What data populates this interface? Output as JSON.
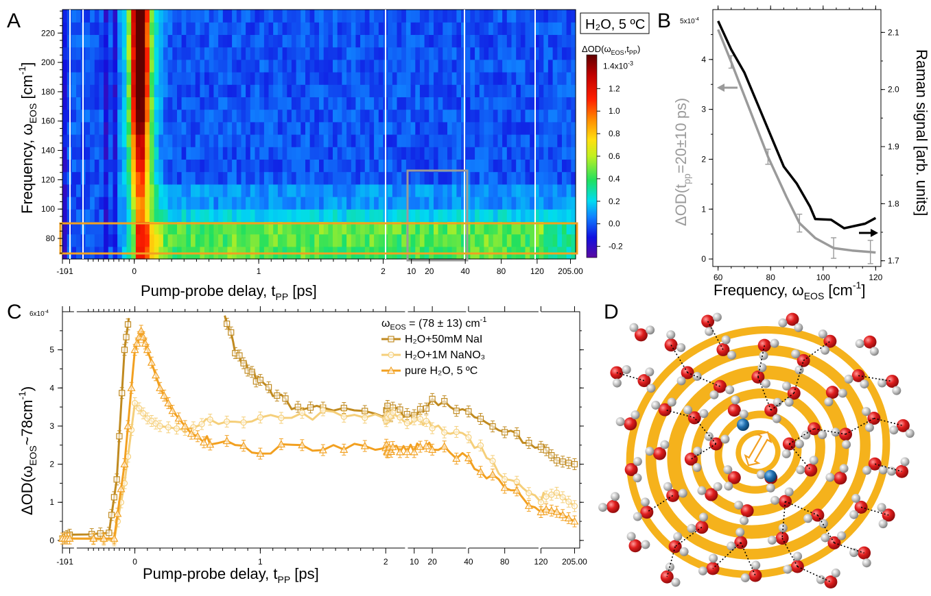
{
  "panels": {
    "a": {
      "letter": "A",
      "inset_label": "H₂O, 5 ºC",
      "xlabel": "Pump-probe delay, t",
      "xlabel_sub": "PP",
      "xlabel_tail": " [ps]",
      "ylabel": "Frequency, ω",
      "ylabel_sub": "EOS",
      "ylabel_tail": " [cm",
      "ylabel_sup": "-1",
      "ylabel_end": "]",
      "colorbar_label": "ΔOD(ω",
      "colorbar_label_sub": "EOS",
      "colorbar_label_mid": ",t",
      "colorbar_label_sub2": "PP",
      "colorbar_label_end": ")"
    },
    "b": {
      "letter": "B"
    },
    "c": {
      "letter": "C"
    },
    "d": {
      "letter": "D"
    }
  },
  "chart_data": [
    {
      "id": "A",
      "type": "heatmap",
      "title": "",
      "xlabel": "Pump-probe delay, tPP [ps]",
      "ylabel": "Frequency, ωEOS [cm-1]",
      "x_tick_labels": [
        "-10",
        "-1",
        "0",
        "1",
        "2",
        "10",
        "20",
        "40",
        "80",
        "120",
        "205.00"
      ],
      "y_ticks": [
        80,
        100,
        120,
        140,
        160,
        180,
        200,
        220
      ],
      "ylim": [
        66,
        236
      ],
      "colorbar": {
        "label": "ΔOD(ωEOS,tPP)",
        "ticks": [
          -0.2,
          0.0,
          0.2,
          0.4,
          0.6,
          0.8,
          1.0,
          1.2
        ],
        "top_label": "1.4x10-3",
        "range": [
          -0.3,
          1.5
        ]
      },
      "features": {
        "time_zero_peak_max": 1.45,
        "low_frequency_band": [
          68,
          88
        ],
        "low_frequency_band_level": 0.45,
        "background_level": -0.02
      }
    },
    {
      "id": "B",
      "type": "line",
      "xlabel": "Frequency, ωEOS [cm-1]",
      "ylabel_left": "ΔOD(tpp=20±10 ps)",
      "ylabel_right": "Raman signal [arb. units]",
      "x_ticks": [
        60,
        80,
        100,
        120
      ],
      "y_left_ticks": [
        0,
        1,
        2,
        3,
        4
      ],
      "y_left_top_label": "5x10-4",
      "y_right_ticks": [
        1.7,
        1.8,
        1.9,
        2.0,
        2.1
      ],
      "xlim": [
        58,
        122
      ],
      "ylim_left": [
        -0.15,
        5.0
      ],
      "ylim_right": [
        1.69,
        2.14
      ],
      "series": [
        {
          "name": "ΔOD",
          "color": "#9a9a9a",
          "axis": "left",
          "x": [
            60,
            65,
            72,
            79,
            86,
            91,
            97,
            104,
            111,
            118,
            120
          ],
          "y": [
            4.6,
            3.95,
            3.0,
            2.05,
            1.25,
            0.72,
            0.42,
            0.22,
            0.17,
            0.14,
            0.13
          ]
        },
        {
          "name": "Raman",
          "color": "#000000",
          "axis": "right",
          "x": [
            60,
            65,
            70,
            75,
            80,
            85,
            90,
            95,
            97,
            103,
            108,
            113,
            116,
            120
          ],
          "y": [
            2.12,
            2.07,
            2.03,
            1.975,
            1.92,
            1.865,
            1.835,
            1.795,
            1.773,
            1.772,
            1.757,
            1.762,
            1.765,
            1.775
          ]
        }
      ]
    },
    {
      "id": "C",
      "type": "line",
      "xlabel": "Pump-probe delay, tPP [ps]",
      "ylabel": "ΔOD(ωEOS~78cm-1)",
      "x_tick_labels": [
        "-10",
        "-1",
        "0",
        "1",
        "2",
        "10",
        "20",
        "40",
        "80",
        "120",
        "205.00"
      ],
      "y_ticks": [
        0,
        1,
        2,
        3,
        4,
        5
      ],
      "y_top_label": "6x10-4",
      "ylim": [
        -0.2,
        6.0
      ],
      "legend_title": "ωEOS = (78 ± 13) cm-1",
      "series": [
        {
          "name": "H₂O+50mM NaI",
          "color": "#c08a20",
          "marker": "square",
          "tpp": [
            -10,
            -1,
            -0.5,
            -0.35,
            -0.2,
            -0.1,
            0.7,
            0.8,
            0.9,
            1.0,
            1.2,
            1.5,
            2.0,
            2.5,
            4,
            10,
            20,
            40,
            80,
            120,
            160,
            205
          ],
          "y": [
            0.05,
            0.15,
            0.2,
            1.6,
            5.0,
            6.0,
            6.0,
            5.0,
            4.5,
            4.2,
            3.6,
            3.4,
            3.3,
            3.4,
            3.4,
            3.3,
            3.6,
            3.4,
            2.8,
            2.5,
            2.1,
            2.0
          ]
        },
        {
          "name": "H₂O+1M NaNO₃",
          "color": "#f5cf7a",
          "marker": "circle",
          "tpp": [
            -10,
            -1,
            -0.4,
            -0.2,
            0.0,
            0.1,
            0.2,
            0.4,
            0.6,
            1.0,
            1.5,
            2.0,
            2.5,
            4,
            10,
            20,
            40,
            80,
            120,
            160,
            205
          ],
          "y": [
            0.05,
            0.05,
            0.0,
            1.5,
            3.6,
            3.2,
            3.0,
            2.9,
            3.1,
            3.2,
            3.3,
            3.2,
            3.3,
            3.3,
            3.1,
            3.0,
            2.7,
            1.7,
            1.1,
            1.25,
            0.9
          ]
        },
        {
          "name": "pure H₂O, 5 ºC",
          "color": "#f2a020",
          "marker": "triangle",
          "tpp": [
            -10,
            -1,
            -0.4,
            -0.2,
            0.0,
            0.05,
            0.1,
            0.2,
            0.3,
            0.45,
            0.6,
            1.0,
            1.5,
            2.0,
            2.5,
            4,
            10,
            20,
            40,
            80,
            120,
            160,
            205
          ],
          "y": [
            0.05,
            0.05,
            0.05,
            2.0,
            5.0,
            5.5,
            5.0,
            4.0,
            3.4,
            2.8,
            2.6,
            2.4,
            2.45,
            2.4,
            2.4,
            2.4,
            2.4,
            2.5,
            2.1,
            1.4,
            0.85,
            0.75,
            0.5
          ]
        }
      ]
    },
    {
      "id": "D",
      "type": "illustration",
      "colors": {
        "oxygen": "#d81e1e",
        "hydrogen": "#b8b8b8",
        "ion": "#1f6fb0",
        "spiral": "#f5b21c"
      }
    }
  ]
}
